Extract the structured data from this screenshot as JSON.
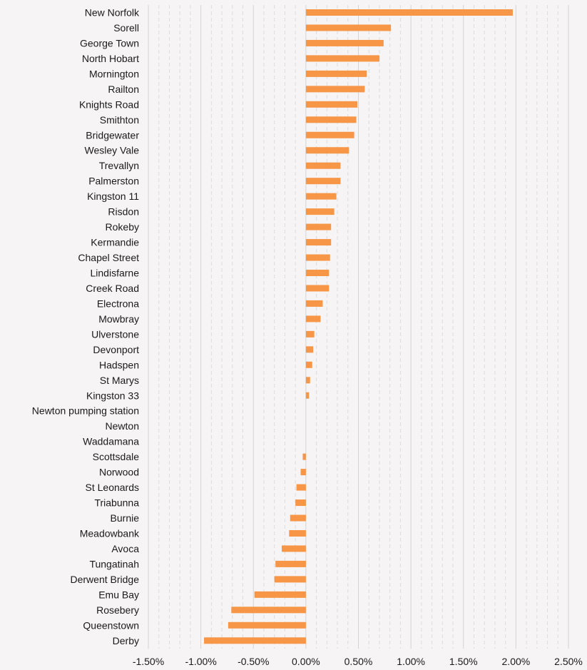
{
  "chart_data": {
    "type": "bar",
    "orientation": "horizontal",
    "title": "",
    "xlabel": "",
    "ylabel": "",
    "xlim": [
      -0.015,
      0.025
    ],
    "x_ticks": [
      -0.015,
      -0.01,
      -0.005,
      0,
      0.005,
      0.01,
      0.015,
      0.02,
      0.025
    ],
    "x_tick_labels": [
      "-1.50%",
      "-1.00%",
      "-0.50%",
      "0.00%",
      "0.50%",
      "1.00%",
      "1.50%",
      "2.00%",
      "2.50%"
    ],
    "grid": "vertical, major solid and minor dashed",
    "legend": "none",
    "bar_color": "#f79646",
    "categories": [
      "New Norfolk",
      "Sorell",
      "George Town",
      "North Hobart",
      "Mornington",
      "Railton",
      "Knights Road",
      "Smithton",
      "Bridgewater",
      "Wesley Vale",
      "Trevallyn",
      "Palmerston",
      "Kingston 11",
      "Risdon",
      "Rokeby",
      "Kermandie",
      "Chapel Street",
      "Lindisfarne",
      "Creek Road",
      "Electrona",
      "Mowbray",
      "Ulverstone",
      "Devonport",
      "Hadspen",
      "St Marys",
      "Kingston 33",
      "Newton pumping station",
      "Newton",
      "Waddamana",
      "Scottsdale",
      "Norwood",
      "St Leonards",
      "Triabunna",
      "Burnie",
      "Meadowbank",
      "Avoca",
      "Tungatinah",
      "Derwent Bridge",
      "Emu Bay",
      "Rosebery",
      "Queenstown",
      "Derby"
    ],
    "values": [
      0.0197,
      0.0081,
      0.0074,
      0.007,
      0.0058,
      0.0056,
      0.0049,
      0.0048,
      0.0046,
      0.0041,
      0.0033,
      0.0033,
      0.0029,
      0.0027,
      0.0024,
      0.0024,
      0.0023,
      0.0022,
      0.0022,
      0.0016,
      0.0014,
      0.0008,
      0.0007,
      0.0006,
      0.0004,
      0.0003,
      0,
      0,
      0,
      -0.0003,
      -0.0005,
      -0.0009,
      -0.001,
      -0.0015,
      -0.0016,
      -0.0023,
      -0.0029,
      -0.003,
      -0.0049,
      -0.0071,
      -0.0074,
      -0.0097
    ]
  }
}
